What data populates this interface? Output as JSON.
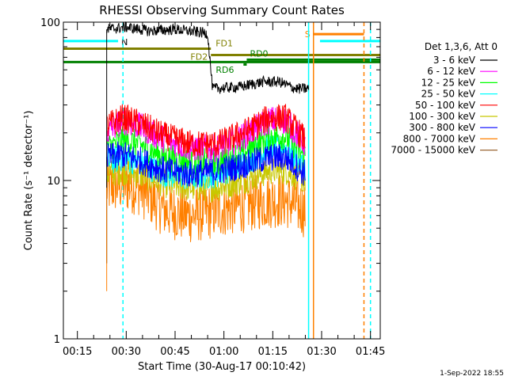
{
  "chart_data": {
    "type": "line",
    "title": "RHESSI Observing Summary Count Rates",
    "xlabel": "Start Time (30-Aug-17 00:10:42)",
    "ylabel": "Count Rate (s⁻¹ detector⁻¹)",
    "y_scale": "log",
    "ylim": [
      1,
      100
    ],
    "xlim": [
      "00:10:42",
      "01:48:00"
    ],
    "x_ticks": [
      "00:15",
      "00:30",
      "00:45",
      "01:00",
      "01:15",
      "01:30",
      "01:45"
    ],
    "y_ticks": [
      "1",
      "10",
      "100"
    ],
    "grid": false,
    "legend": {
      "position": "top-right",
      "header": "Det 1,3,6, Att 0"
    },
    "series": [
      {
        "name": "3 - 6 keV",
        "color": "#000000",
        "points": [
          [
            "00:24:00",
            90
          ],
          [
            "00:30:00",
            93
          ],
          [
            "00:37:00",
            88
          ],
          [
            "00:45:00",
            90
          ],
          [
            "00:55:00",
            85
          ],
          [
            "00:56:30",
            38
          ],
          [
            "01:05:00",
            39
          ],
          [
            "01:12:00",
            42
          ],
          [
            "01:17:00",
            42
          ],
          [
            "01:22:00",
            38
          ],
          [
            "01:26:00",
            38
          ]
        ]
      },
      {
        "name": "6 - 12 keV",
        "color": "#ff00ff",
        "points": [
          [
            "00:24:00",
            20
          ],
          [
            "00:29:00",
            24
          ],
          [
            "00:34:00",
            22
          ],
          [
            "00:42:00",
            18
          ],
          [
            "00:50:00",
            16
          ],
          [
            "00:58:00",
            16
          ],
          [
            "01:06:00",
            19
          ],
          [
            "01:14:00",
            24
          ],
          [
            "01:19:00",
            24
          ],
          [
            "01:25:00",
            17
          ]
        ]
      },
      {
        "name": "12 - 25 keV",
        "color": "#00ff00",
        "points": [
          [
            "00:24:00",
            16
          ],
          [
            "00:29:00",
            18
          ],
          [
            "00:34:00",
            17
          ],
          [
            "00:42:00",
            14
          ],
          [
            "00:50:00",
            13
          ],
          [
            "00:58:00",
            13
          ],
          [
            "01:06:00",
            15
          ],
          [
            "01:14:00",
            19
          ],
          [
            "01:19:00",
            19
          ],
          [
            "01:25:00",
            14
          ]
        ]
      },
      {
        "name": "25 - 50 keV",
        "color": "#00ffff",
        "points": [
          [
            "00:24:00",
            13
          ],
          [
            "00:29:00",
            14
          ],
          [
            "00:34:00",
            13
          ],
          [
            "00:42:00",
            11
          ],
          [
            "00:50:00",
            10.5
          ],
          [
            "00:58:00",
            11
          ],
          [
            "01:06:00",
            13
          ],
          [
            "01:14:00",
            16
          ],
          [
            "01:19:00",
            16
          ],
          [
            "01:25:00",
            12
          ]
        ]
      },
      {
        "name": "50 - 100 keV",
        "color": "#ff0000",
        "points": [
          [
            "00:24:00",
            22
          ],
          [
            "00:29:00",
            25
          ],
          [
            "00:34:00",
            23
          ],
          [
            "00:42:00",
            19
          ],
          [
            "00:50:00",
            17
          ],
          [
            "00:58:00",
            17
          ],
          [
            "01:06:00",
            20
          ],
          [
            "01:14:00",
            25
          ],
          [
            "01:19:00",
            25
          ],
          [
            "01:25:00",
            18
          ]
        ]
      },
      {
        "name": "100 - 300 keV",
        "color": "#c8c800",
        "points": [
          [
            "00:24:00",
            11
          ],
          [
            "00:29:00",
            11.5
          ],
          [
            "00:34:00",
            11
          ],
          [
            "00:42:00",
            9.5
          ],
          [
            "00:50:00",
            9
          ],
          [
            "00:58:00",
            9
          ],
          [
            "01:06:00",
            10
          ],
          [
            "01:14:00",
            11.5
          ],
          [
            "01:19:00",
            11.5
          ],
          [
            "01:25:00",
            10
          ]
        ]
      },
      {
        "name": "300 - 800 keV",
        "color": "#0000ff",
        "points": [
          [
            "00:24:00",
            14
          ],
          [
            "00:29:00",
            14.5
          ],
          [
            "00:34:00",
            13.5
          ],
          [
            "00:42:00",
            11.5
          ],
          [
            "00:50:00",
            11
          ],
          [
            "00:58:00",
            11.5
          ],
          [
            "01:06:00",
            12.5
          ],
          [
            "01:14:00",
            14
          ],
          [
            "01:19:00",
            14
          ],
          [
            "01:25:00",
            11
          ]
        ]
      },
      {
        "name": "800 - 7000 keV",
        "color": "#ff8000",
        "points": [
          [
            "00:24:00",
            9
          ],
          [
            "00:29:00",
            9.5
          ],
          [
            "00:34:00",
            9
          ],
          [
            "00:42:00",
            6.5
          ],
          [
            "00:50:00",
            6
          ],
          [
            "00:58:00",
            6.5
          ],
          [
            "01:06:00",
            7
          ],
          [
            "01:14:00",
            7.5
          ],
          [
            "01:19:00",
            7.5
          ],
          [
            "01:25:00",
            6.5
          ]
        ]
      },
      {
        "name": "7000 - 15000 keV",
        "color": "#996633",
        "points": []
      }
    ],
    "annotations": {
      "night": [
        {
          "label": "N",
          "start": "00:10:42",
          "end": "00:27:30",
          "y": 76,
          "color": "#00ffff"
        },
        {
          "label": "",
          "start": "01:29:30",
          "end": "01:48:00",
          "y": 76,
          "color": "#00ffff"
        }
      ],
      "saa": [
        {
          "label": "S",
          "start": "01:27:30",
          "end": "01:43:00",
          "y": 84,
          "color": "#ff8000"
        }
      ],
      "flare_decimation": [
        {
          "label": "FD1",
          "start": "00:10:42",
          "end": "00:56:00",
          "y": 68,
          "color": "#808000"
        },
        {
          "label": "FD2",
          "start": "00:56:00",
          "end": "01:48:00",
          "y": 62,
          "color": "#808000"
        }
      ],
      "rear_decimation": [
        {
          "label": "RD0",
          "start": "01:07:00",
          "end": "01:48:00",
          "y": 58,
          "color": "#008000"
        },
        {
          "label": "RD6",
          "start": "00:10:42",
          "end": "01:48:00",
          "y": 56,
          "color": "#008000"
        }
      ],
      "vlines": [
        {
          "time": "00:29:00",
          "color": "#00ffff",
          "dashed": true
        },
        {
          "time": "01:26:00",
          "color": "#00ffff",
          "dashed": false
        },
        {
          "time": "01:27:30",
          "color": "#ff8000",
          "dashed": false
        },
        {
          "time": "01:43:00",
          "color": "#ff8000",
          "dashed": true
        },
        {
          "time": "01:45:00",
          "color": "#00ffff",
          "dashed": true
        }
      ]
    }
  },
  "footer": {
    "date": "1-Sep-2022 18:55"
  }
}
